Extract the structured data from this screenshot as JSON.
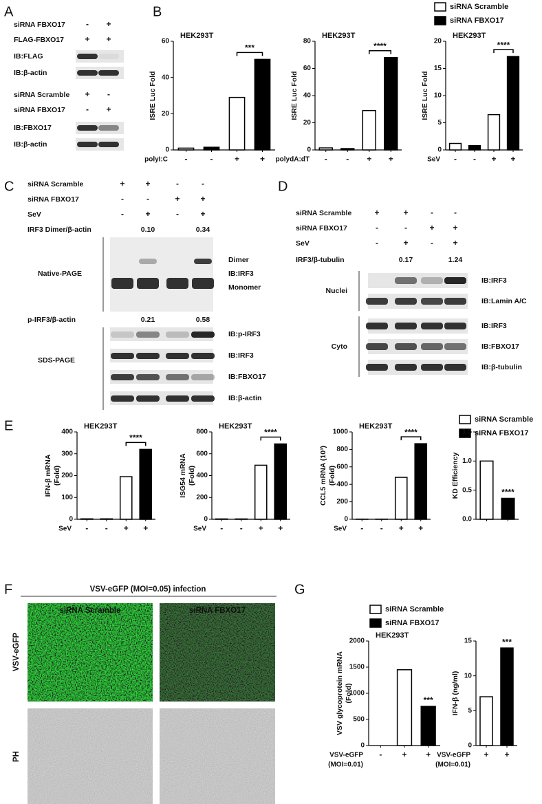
{
  "panel_labels": [
    "A",
    "B",
    "C",
    "D",
    "E",
    "F",
    "G"
  ],
  "panel_a": {
    "treatment_rows": [
      {
        "label": "siRNA FBXO17",
        "signs": [
          "-",
          "+"
        ]
      },
      {
        "label": "FLAG-FBXO17",
        "signs": [
          "+",
          "+"
        ]
      }
    ],
    "blots": [
      "IB:FLAG",
      "IB:β-actin"
    ],
    "treatment_rows_2": [
      {
        "label": "siRNA Scramble",
        "signs": [
          "+",
          "-"
        ]
      },
      {
        "label": "siRNA FBXO17",
        "signs": [
          "-",
          "+"
        ]
      }
    ],
    "blots_2": [
      "IB:FBXO17",
      "IB:β-actin"
    ]
  },
  "legend_b": [
    {
      "name": "siRNA Scramble",
      "color": "#ffffff"
    },
    {
      "name": "siRNA FBXO17",
      "color": "#000000"
    }
  ],
  "panel_c": {
    "treatment_rows": [
      {
        "label": "siRNA Scramble",
        "signs": [
          "+",
          "+",
          "-",
          "-"
        ]
      },
      {
        "label": "siRNA FBXO17",
        "signs": [
          "-",
          "-",
          "+",
          "+"
        ]
      },
      {
        "label": "SeV",
        "signs": [
          "-",
          "+",
          "-",
          "+"
        ]
      }
    ],
    "ratio_1": {
      "label": "IRF3 Dimer/β-actin",
      "values": [
        "0.10",
        "0.34"
      ]
    },
    "native_label": "Native-PAGE",
    "native_bands": [
      "Dimer",
      "IB:IRF3",
      "Monomer"
    ],
    "ratio_2": {
      "label": "p-IRF3/β-actin",
      "values": [
        "0.21",
        "0.58"
      ]
    },
    "sds_label": "SDS-PAGE",
    "sds_blots": [
      "IB:p-IRF3",
      "IB:IRF3",
      "IB:FBXO17",
      "IB:β-actin"
    ]
  },
  "panel_d": {
    "treatment_rows": [
      {
        "label": "siRNA Scramble",
        "signs": [
          "+",
          "+",
          "-",
          "-"
        ]
      },
      {
        "label": "siRNA FBXO17",
        "signs": [
          "-",
          "-",
          "+",
          "+"
        ]
      },
      {
        "label": "SeV",
        "signs": [
          "-",
          "+",
          "-",
          "+"
        ]
      }
    ],
    "ratio": {
      "label": "IRF3/β-tubulin",
      "values": [
        "0.17",
        "1.24"
      ]
    },
    "groups": [
      {
        "label": "Nuclei",
        "blots": [
          "IB:IRF3",
          "IB:Lamin A/C"
        ]
      },
      {
        "label": "Cyto",
        "blots": [
          "IB:IRF3",
          "IB:FBXO17",
          "IB:β-tubulin"
        ]
      }
    ]
  },
  "legend_e": [
    {
      "name": "siRNA Scramble",
      "color": "#ffffff"
    },
    {
      "name": "siRNA FBXO17",
      "color": "#000000"
    }
  ],
  "panel_f": {
    "title": "VSV-eGFP (MOI=0.05) infection",
    "columns": [
      "siRNA Scramble",
      "siRNA FBXO17"
    ],
    "rows": [
      "VSV-eGFP",
      "PH"
    ]
  },
  "legend_g": [
    {
      "name": "siRNA Scramble",
      "color": "#ffffff"
    },
    {
      "name": "siRNA FBXO17",
      "color": "#000000"
    }
  ],
  "chart_data": [
    {
      "type": "bar",
      "title": "HEK293T",
      "ylabel": [
        "ISRE Luc Fold"
      ],
      "ylim": [
        0,
        60
      ],
      "yticks": [
        0,
        20,
        40,
        60
      ],
      "x_label": [
        "polyI:C"
      ],
      "categories": [
        "-",
        "-",
        "+",
        "+"
      ],
      "values": [
        1,
        1.5,
        29,
        50
      ],
      "colors": [
        "#ffffff",
        "#000000",
        "#ffffff",
        "#000000"
      ],
      "significance": "***",
      "bracket": true
    },
    {
      "type": "bar",
      "title": "HEK293T",
      "ylabel": [
        "ISRE Luc Fold"
      ],
      "ylim": [
        0,
        80
      ],
      "yticks": [
        0,
        20,
        40,
        60,
        80
      ],
      "x_label": [
        "polydA:dT"
      ],
      "categories": [
        "-",
        "-",
        "+",
        "+"
      ],
      "values": [
        1.5,
        1,
        29,
        68
      ],
      "colors": [
        "#ffffff",
        "#000000",
        "#ffffff",
        "#000000"
      ],
      "significance": "****",
      "bracket": true
    },
    {
      "type": "bar",
      "title": "HEK293T",
      "ylabel": [
        "ISRE Luc Fold"
      ],
      "ylim": [
        0,
        20
      ],
      "yticks": [
        0,
        5,
        10,
        15,
        20
      ],
      "x_label": [
        "SeV"
      ],
      "categories": [
        "-",
        "-",
        "+",
        "+"
      ],
      "values": [
        1.2,
        0.8,
        6.5,
        17.2
      ],
      "colors": [
        "#ffffff",
        "#000000",
        "#ffffff",
        "#000000"
      ],
      "significance": "****",
      "bracket": true
    },
    {
      "type": "bar",
      "title": "HEK293T",
      "ylabel": [
        "IFN-β mRNA",
        "(Fold)"
      ],
      "ylim": [
        0,
        400
      ],
      "yticks": [
        0,
        100,
        200,
        300,
        400
      ],
      "x_label": [
        "SeV"
      ],
      "categories": [
        "-",
        "-",
        "+",
        "+"
      ],
      "values": [
        2,
        2,
        195,
        320
      ],
      "colors": [
        "#ffffff",
        "#000000",
        "#ffffff",
        "#000000"
      ],
      "significance": "****",
      "bracket": true
    },
    {
      "type": "bar",
      "title": "HEK293T",
      "ylabel": [
        "ISG54 mRNA",
        "(Fold)"
      ],
      "ylim": [
        0,
        800
      ],
      "yticks": [
        0,
        200,
        400,
        600,
        800
      ],
      "x_label": [
        "SeV"
      ],
      "categories": [
        "-",
        "-",
        "+",
        "+"
      ],
      "values": [
        3,
        3,
        495,
        690
      ],
      "colors": [
        "#ffffff",
        "#000000",
        "#ffffff",
        "#000000"
      ],
      "significance": "****",
      "bracket": true
    },
    {
      "type": "bar",
      "title": "HEK293T",
      "ylabel": [
        "CCL5 mRNA (10³)",
        "(Fold)"
      ],
      "ylim": [
        0,
        1000
      ],
      "yticks": [
        0,
        200,
        400,
        600,
        800,
        1000
      ],
      "x_label": [
        "SeV"
      ],
      "categories": [
        "-",
        "-",
        "+",
        "+"
      ],
      "values": [
        1,
        1,
        480,
        865
      ],
      "colors": [
        "#ffffff",
        "#000000",
        "#ffffff",
        "#000000"
      ],
      "significance": "****",
      "bracket": true
    },
    {
      "type": "bar",
      "ylabel": [
        "KD Efficiency"
      ],
      "ylim": [
        0,
        1.5
      ],
      "yticks": [
        {
          "value": 0,
          "label": "0.0"
        },
        {
          "value": 0.5,
          "label": "0.5"
        },
        {
          "value": 1,
          "label": "1.0"
        },
        {
          "value": 1.5,
          "label": "1.5"
        }
      ],
      "values": [
        1.0,
        0.36
      ],
      "colors": [
        "#ffffff",
        "#000000"
      ],
      "significance": "****",
      "bracket": false
    },
    {
      "type": "bar",
      "title": "HEK293T",
      "ylabel": [
        "VSV glycoprotein mRNA",
        "(Fold)"
      ],
      "ylim": [
        0,
        2000
      ],
      "yticks": [
        0,
        500,
        1000,
        1500,
        2000
      ],
      "x_label": [
        "VSV-eGFP",
        "(MOI=0.01)"
      ],
      "categories": [
        "-",
        "+",
        "+"
      ],
      "values": [
        0,
        1450,
        750
      ],
      "colors": [
        "#ffffff",
        "#ffffff",
        "#000000"
      ],
      "significance": "***",
      "bracket": false
    },
    {
      "type": "bar",
      "ylabel": [
        "IFN-β (ng/ml)"
      ],
      "ylim": [
        0,
        15
      ],
      "yticks": [
        0,
        5,
        10,
        15
      ],
      "x_label": [
        "VSV-eGFP",
        "(MOI=0.01)"
      ],
      "categories": [
        "+",
        "+"
      ],
      "values": [
        7,
        14
      ],
      "colors": [
        "#ffffff",
        "#000000"
      ],
      "significance": "***",
      "bracket": false
    }
  ]
}
